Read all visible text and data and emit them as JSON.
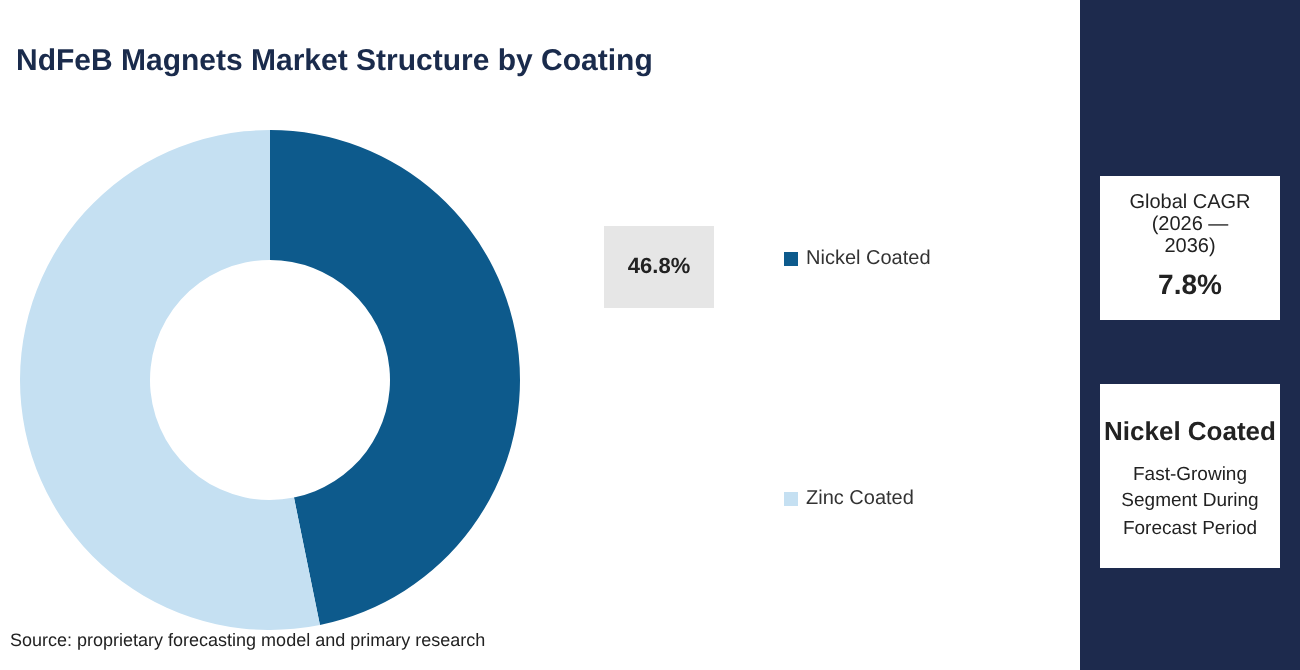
{
  "chart_data": {
    "type": "donut",
    "title": "NdFeB Magnets Market Structure by Coating",
    "categories": [
      "Nickel Coated",
      "Zinc Coated"
    ],
    "values": [
      46.8,
      53.2
    ],
    "colors": [
      "#0d5a8c",
      "#c5e0f2"
    ],
    "value_labels": [
      "46.8%",
      null
    ],
    "legend": "right",
    "annotations": [
      "Source: proprietary forecasting model and primary research",
      "Global CAGR (2026 — 2036)",
      "7.8%",
      "Nickel Coated",
      "Fast-Growing Segment During Forecast Period"
    ]
  }
}
